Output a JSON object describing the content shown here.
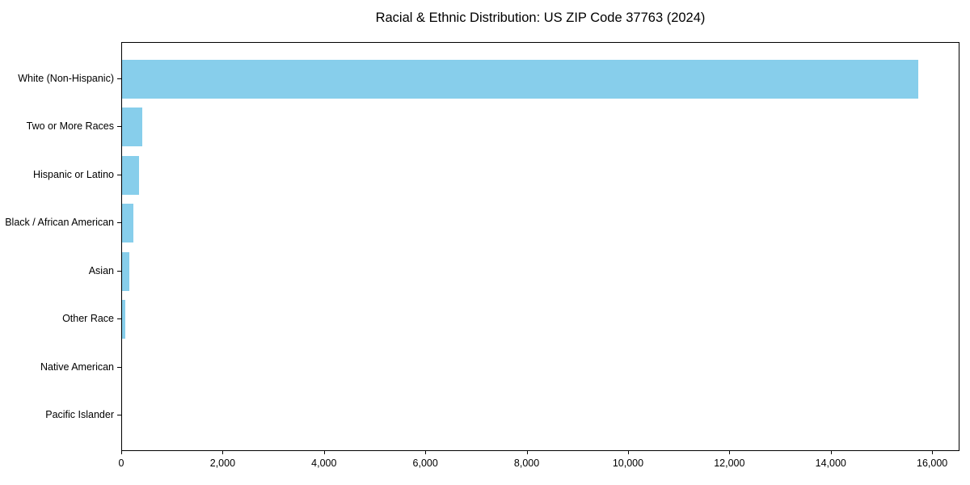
{
  "chart_data": {
    "type": "bar",
    "orientation": "horizontal",
    "title": "Racial & Ethnic Distribution: US ZIP Code 37763 (2024)",
    "categories": [
      "White (Non-Hispanic)",
      "Two or More Races",
      "Hispanic or Latino",
      "Black / African American",
      "Asian",
      "Other Race",
      "Native American",
      "Pacific Islander"
    ],
    "values": [
      15740,
      400,
      335,
      220,
      145,
      65,
      0,
      0
    ],
    "xlabel": "",
    "ylabel": "",
    "xlim": [
      0,
      16540
    ],
    "x_ticks": [
      0,
      2000,
      4000,
      6000,
      8000,
      10000,
      12000,
      14000,
      16000
    ],
    "x_tick_labels": [
      "0",
      "2,000",
      "4,000",
      "6,000",
      "8,000",
      "10,000",
      "12,000",
      "14,000",
      "16,000"
    ],
    "bar_color": "#87CEEB",
    "axis_color": "#000000",
    "background_color": "#ffffff",
    "grid": false,
    "legend": null
  }
}
